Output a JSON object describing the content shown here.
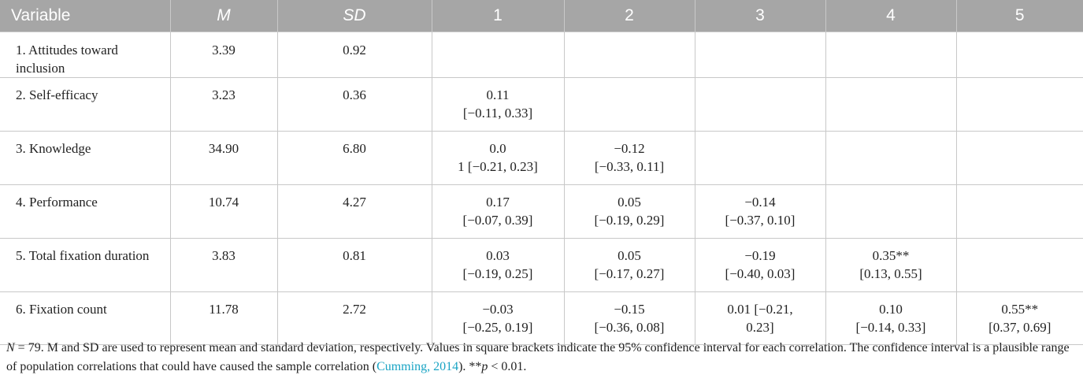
{
  "header": {
    "variable": "Variable",
    "m": "M",
    "sd": "SD",
    "c1": "1",
    "c2": "2",
    "c3": "3",
    "c4": "4",
    "c5": "5"
  },
  "rows": [
    {
      "variable": "1. Attitudes toward inclusion",
      "m": "3.39",
      "sd": "0.92",
      "c1": [
        "",
        ""
      ],
      "c2": [
        "",
        ""
      ],
      "c3": [
        "",
        ""
      ],
      "c4": [
        "",
        ""
      ],
      "c5": [
        "",
        ""
      ]
    },
    {
      "variable": "2. Self-efficacy",
      "m": "3.23",
      "sd": "0.36",
      "c1": [
        "0.11",
        "[−0.11, 0.33]"
      ],
      "c2": [
        "",
        ""
      ],
      "c3": [
        "",
        ""
      ],
      "c4": [
        "",
        ""
      ],
      "c5": [
        "",
        ""
      ]
    },
    {
      "variable": "3. Knowledge",
      "m": "34.90",
      "sd": "6.80",
      "c1": [
        "0.0",
        "1 [−0.21, 0.23]"
      ],
      "c2": [
        "−0.12",
        "[−0.33, 0.11]"
      ],
      "c3": [
        "",
        ""
      ],
      "c4": [
        "",
        ""
      ],
      "c5": [
        "",
        ""
      ]
    },
    {
      "variable": "4. Performance",
      "m": "10.74",
      "sd": "4.27",
      "c1": [
        "0.17",
        "[−0.07, 0.39]"
      ],
      "c2": [
        "0.05",
        "[−0.19, 0.29]"
      ],
      "c3": [
        "−0.14",
        "[−0.37, 0.10]"
      ],
      "c4": [
        "",
        ""
      ],
      "c5": [
        "",
        ""
      ]
    },
    {
      "variable": "5. Total fixation duration",
      "m": "3.83",
      "sd": "0.81",
      "c1": [
        "0.03",
        "[−0.19, 0.25]"
      ],
      "c2": [
        "0.05",
        "[−0.17, 0.27]"
      ],
      "c3": [
        "−0.19",
        "[−0.40, 0.03]"
      ],
      "c4": [
        "0.35**",
        "[0.13, 0.55]"
      ],
      "c5": [
        "",
        ""
      ]
    },
    {
      "variable": "6. Fixation count",
      "m": "11.78",
      "sd": "2.72",
      "c1": [
        "−0.03",
        "[−0.25, 0.19]"
      ],
      "c2": [
        "−0.15",
        "[−0.36, 0.08]"
      ],
      "c3": [
        "0.01 [−0.21,",
        "0.23]"
      ],
      "c4": [
        "0.10",
        "[−0.14, 0.33]"
      ],
      "c5": [
        "0.55**",
        "[0.37, 0.69]"
      ]
    }
  ],
  "note": {
    "n_symbol": "N",
    "part1": " = 79. M and SD are used to represent mean and standard deviation, respectively. Values in square brackets indicate the 95% confidence interval for each correlation. The confidence interval is a plausible range of population correlations that could have caused the sample correlation (",
    "citation": "Cumming, 2014",
    "part2": "). **",
    "p_symbol": "p",
    "part3": " < 0.01."
  },
  "colors": {
    "header_bg": "#a6a6a6",
    "header_text": "#ffffff",
    "cell_border": "#c8c8c8",
    "citation_link": "#19a4c4"
  }
}
